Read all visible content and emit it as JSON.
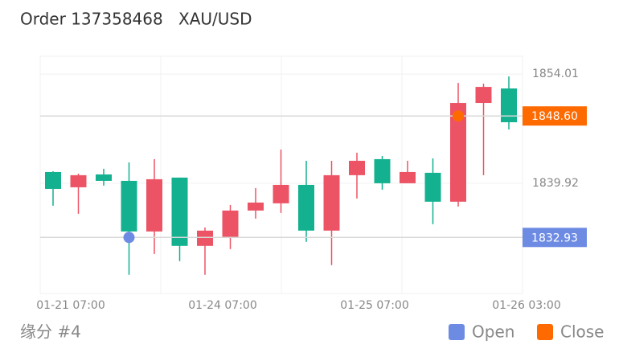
{
  "chart_data": {
    "type": "candlestick",
    "title": "Order 137358468",
    "subtitle": "XAU/USD",
    "caption": "缘分 #4",
    "categories": [
      "01-21 07:00",
      null,
      null,
      null,
      null,
      null,
      "01-24 07:00",
      null,
      null,
      null,
      null,
      null,
      "01-25 07:00",
      null,
      null,
      null,
      null,
      null,
      "01-26 03:00"
    ],
    "open": [
      1839.19,
      1840.96,
      1840.23,
      1833.7,
      1840.44,
      1831.84,
      1833.81,
      1836.4,
      1837.43,
      1839.71,
      1833.81,
      1840.96,
      1842.82,
      1839.92,
      1841.37,
      1837.54,
      1850.28,
      1852.35,
      1847.79
    ],
    "high": [
      1841.47,
      1841.16,
      1841.79,
      1842.61,
      1843.03,
      1840.65,
      1834.22,
      1837.12,
      1839.3,
      1844.27,
      1842.82,
      1842.82,
      1843.86,
      1843.44,
      1842.82,
      1843.13,
      1852.87,
      1852.77,
      1853.7
    ],
    "low": [
      1837.02,
      1835.98,
      1839.61,
      1828.11,
      1830.8,
      1829.87,
      1828.11,
      1831.43,
      1835.36,
      1836.09,
      1832.36,
      1829.35,
      1837.95,
      1839.09,
      1839.92,
      1834.64,
      1836.92,
      1840.96,
      1846.86
    ],
    "close": [
      1841.37,
      1839.4,
      1841.06,
      1840.23,
      1833.7,
      1840.65,
      1831.84,
      1832.88,
      1836.4,
      1837.33,
      1839.71,
      1833.81,
      1840.96,
      1843.03,
      1839.92,
      1841.27,
      1837.54,
      1850.28,
      1852.15
    ],
    "up_color": "#13b190",
    "down_color": "#ec5466",
    "series": [
      {
        "name": "Open",
        "color": "#6e8be3",
        "values": [
          null,
          null,
          null,
          1832.93,
          null,
          null,
          null,
          null,
          null,
          null,
          null,
          null,
          null,
          null,
          null,
          null,
          null,
          null,
          null
        ]
      },
      {
        "name": "Close",
        "color": "#ff6a00",
        "values": [
          null,
          null,
          null,
          null,
          null,
          null,
          null,
          null,
          null,
          null,
          null,
          null,
          null,
          null,
          null,
          null,
          1848.6,
          null,
          null
        ],
        "value_labels": [
          null,
          null,
          null,
          null,
          null,
          null,
          null,
          null,
          null,
          null,
          null,
          null,
          null,
          null,
          null,
          null,
          "1848.60",
          null,
          null
        ]
      }
    ],
    "ylim": [
      1825.7,
      1856.3
    ],
    "yticks": [
      1854.01,
      1839.92
    ],
    "grid": true
  }
}
